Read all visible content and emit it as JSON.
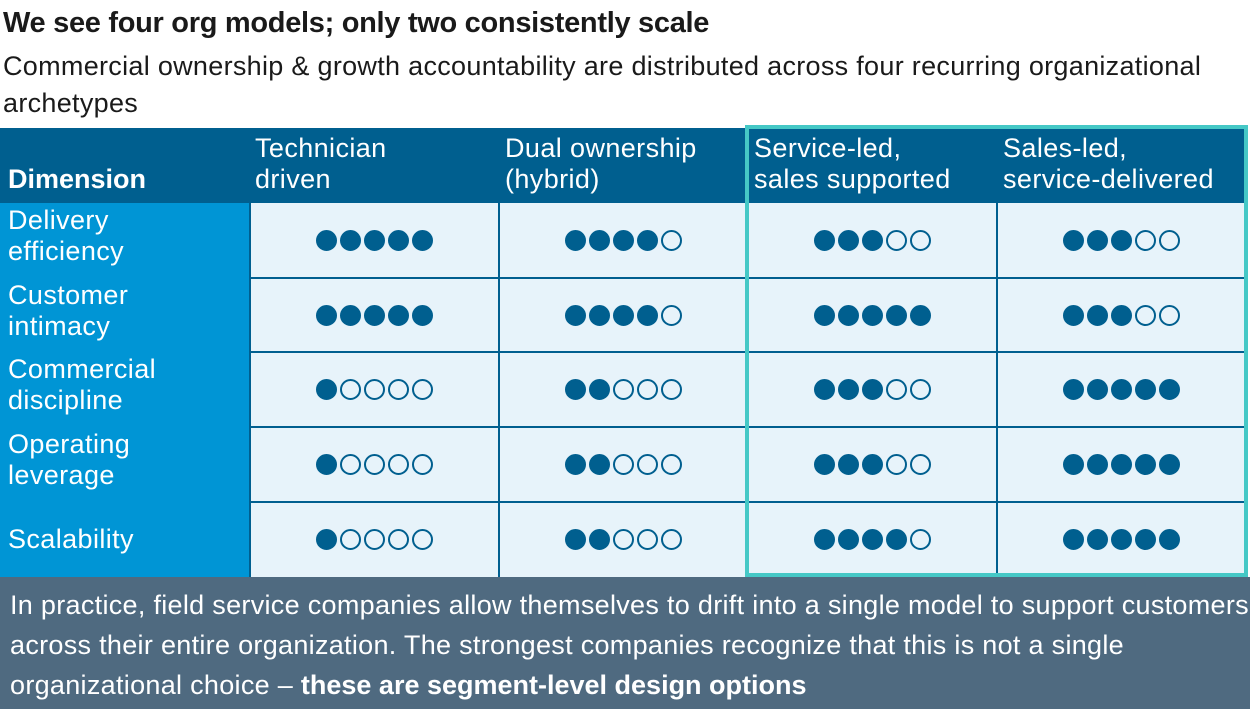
{
  "title": "We see four org models; only two consistently scale",
  "subtitle": "Commercial ownership & growth accountability are distributed across four recurring organizational archetypes",
  "table": {
    "headers": [
      {
        "line1": "",
        "line2": "Dimension"
      },
      {
        "line1": "Technician",
        "line2": "driven"
      },
      {
        "line1": "Dual ownership",
        "line2": "(hybrid)"
      },
      {
        "line1": "Service-led,",
        "line2": "sales supported"
      },
      {
        "line1": "Sales-led,",
        "line2": "service-delivered"
      }
    ],
    "max_score": 5,
    "rows": [
      {
        "line1": "Delivery",
        "line2": "efficiency",
        "scores": [
          5,
          4,
          3,
          3
        ]
      },
      {
        "line1": "Customer",
        "line2": "intimacy",
        "scores": [
          5,
          4,
          5,
          3
        ]
      },
      {
        "line1": "Commercial",
        "line2": "discipline",
        "scores": [
          1,
          2,
          3,
          5
        ]
      },
      {
        "line1": "Operating",
        "line2": "leverage",
        "scores": [
          1,
          2,
          3,
          5
        ]
      },
      {
        "line1": "Scalability",
        "line2": "",
        "scores": [
          1,
          2,
          4,
          5
        ]
      }
    ]
  },
  "colors": {
    "header_bg": "#005f8f",
    "dimension_bg": "#0095d5",
    "cell_bg": "#e7f3fa",
    "dot": "#005f8f",
    "highlight_border": "#45c8c6",
    "footer_bg": "#4f6a80"
  },
  "footer": {
    "text": "In practice, field service companies allow themselves to drift into a single model to support customers across their entire organization. The strongest companies recognize that this is not a single organizational choice – ",
    "bold": "these are segment-level design options"
  }
}
